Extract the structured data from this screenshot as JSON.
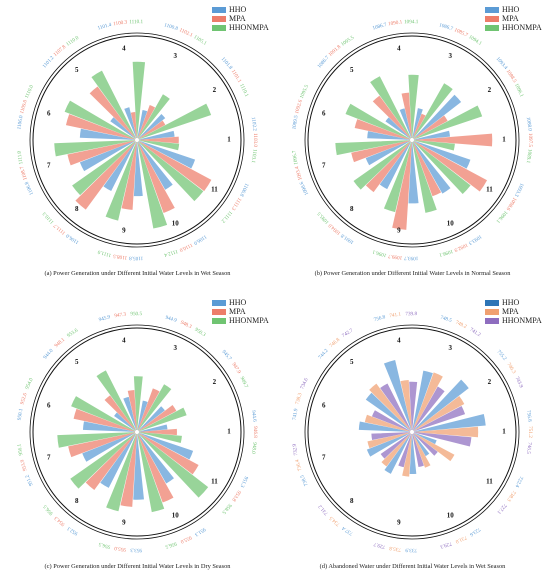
{
  "chart_data": [
    {
      "type": "radial-bar",
      "caption": "(a) Power Generation under Different Initial Water Levels in Wet Season",
      "legend_position": "top-right",
      "categories": [
        "1",
        "2",
        "3",
        "4",
        "5",
        "6",
        "7",
        "8",
        "9",
        "10",
        "11"
      ],
      "series": [
        {
          "name": "HHO",
          "color": "#5b9bd5",
          "values": [
            1102.2,
            1101.8,
            1100.8,
            1101.4,
            1101.2,
            1106.0,
            1106.8,
            1106.0,
            1105.8,
            1106.0,
            1106.8
          ]
        },
        {
          "name": "MPA",
          "color": "#ed7d6a",
          "values": [
            1103.0,
            1101.1,
            1102.1,
            1100.3,
            1107.8,
            1109.0,
            1108.7,
            1111.7,
            1108.5,
            1110.0,
            1111.3
          ]
        },
        {
          "name": "HHONMPA",
          "color": "#70c472",
          "values": [
            1103.1,
            1110.1,
            1105.1,
            1110.1,
            1110.0,
            1110.0,
            1111.0,
            1110.3,
            1111.0,
            1112.4,
            1111.2
          ]
        }
      ],
      "label_text": [
        [
          "1102.2",
          "1103.0",
          "1103.1"
        ],
        [
          "1101.8",
          "1101.1",
          "1110.1"
        ],
        [
          "1100.8",
          "1102.1",
          "1105.1"
        ],
        [
          "1101.4",
          "1100.3",
          "1110.1"
        ],
        [
          "1101.2",
          "1107.8",
          "1110.0"
        ],
        [
          "1106.0",
          "1109.0",
          "1110.0"
        ],
        [
          "1106.8",
          "1108.7",
          "1111.0"
        ],
        [
          "1106.0",
          "1111.7",
          "1110.3"
        ],
        [
          "1105.8",
          "1108.5",
          "1111.0"
        ],
        [
          "1106.0",
          "1110.0",
          "1112.4"
        ],
        [
          "1106.8",
          "1111.3",
          "1111.2"
        ]
      ]
    },
    {
      "type": "radial-bar",
      "caption": "(b) Power Generation under Different Initial Water Levels in Normal Season",
      "legend_position": "top-right",
      "categories": [
        "1",
        "2",
        "3",
        "4",
        "5",
        "6",
        "7",
        "8",
        "9",
        "10",
        "11"
      ],
      "series": [
        {
          "name": "HHO",
          "color": "#5b9bd5",
          "values": [
            1088.0,
            1093.4,
            1086.7,
            1086.7,
            1086.7,
            1089.5,
            1090.6,
            1091.8,
            1093.7,
            1093.3,
            1093.3
          ]
        },
        {
          "name": "MPA",
          "color": "#ed7d6a",
          "values": [
            1097.5,
            1088.5,
            1085.7,
            1090.1,
            1091.8,
            1092.6,
            1093.4,
            1094.0,
            1099.7,
            1092.9,
            1098.6
          ]
        },
        {
          "name": "HHONMPA",
          "color": "#70c472",
          "values": [
            1089.1,
            1096.1,
            1094.1,
            1094.1,
            1095.5,
            1095.5,
            1096.7,
            1095.5,
            1096.1,
            1096.1,
            1096.1
          ]
        }
      ],
      "label_text": [
        [
          "1088.0",
          "1097.5",
          "1089.1"
        ],
        [
          "1093.4",
          "1088.5",
          "1096.1"
        ],
        [
          "1086.7",
          "1085.7",
          "1094.1"
        ],
        [
          "1086.7",
          "1090.1",
          "1094.1"
        ],
        [
          "1086.7",
          "1091.8",
          "1095.5"
        ],
        [
          "1089.5",
          "1092.6",
          "1095.5"
        ],
        [
          "1090.6",
          "1093.4",
          "1096.7"
        ],
        [
          "1091.8",
          "1094.0",
          "1095.5"
        ],
        [
          "1093.7",
          "1099.7",
          "1096.1"
        ],
        [
          "1093.3",
          "1092.9",
          "1096.1"
        ],
        [
          "1093.3",
          "1098.6",
          "1096.1"
        ]
      ]
    },
    {
      "type": "radial-bar",
      "caption": "(c) Power Generation under Different Initial Water Levels in Dry Season",
      "legend_position": "top-right",
      "categories": [
        "1",
        "2",
        "3",
        "4",
        "5",
        "6",
        "7",
        "8",
        "9",
        "10",
        "11"
      ],
      "series": [
        {
          "name": "HHO",
          "color": "#5b9bd5",
          "values": [
            944.6,
            945.7,
            944.9,
            945.9,
            944.0,
            950.1,
            951.2,
            952.1,
            953.3,
            951.3,
            951.3
          ]
        },
        {
          "name": "MPA",
          "color": "#ed7d6a",
          "values": [
            946.8,
            947.9,
            948.3,
            947.3,
            948.1,
            952.6,
            953.9,
            954.3,
            955.0,
            955.0,
            953.8
          ]
        },
        {
          "name": "HHONMPA",
          "color": "#70c472",
          "values": [
            948.0,
            949.7,
            950.3,
            950.5,
            953.6,
            954.0,
            956.1,
            956.5,
            956.5,
            956.5,
            958.5
          ]
        }
      ],
      "label_text": [
        [
          "944.6",
          "946.8",
          "948.0"
        ],
        [
          "945.7",
          "947.9",
          "949.7"
        ],
        [
          "944.9",
          "948.3",
          "950.3"
        ],
        [
          "945.9",
          "947.3",
          "950.5"
        ],
        [
          "944.0",
          "948.1",
          "953.6"
        ],
        [
          "950.1",
          "952.6",
          "954.0"
        ],
        [
          "951.2",
          "953.9",
          "956.1"
        ],
        [
          "952.1",
          "954.3",
          "956.5"
        ],
        [
          "953.3",
          "955.0",
          "956.5"
        ],
        [
          "951.3",
          "955.0",
          "956.5"
        ],
        [
          "951.3",
          "953.8",
          "958.5"
        ]
      ]
    },
    {
      "type": "radial-bar",
      "caption": "(d) Abandoned Water under Different Initial Water Levels in Wet Season",
      "legend_position": "top-right",
      "categories": [
        "1",
        "2",
        "3",
        "4",
        "5",
        "6",
        "7",
        "8",
        "9",
        "10",
        "11"
      ],
      "series": [
        {
          "name": "HHO",
          "color": "#5b9bd5",
          "values": [
            756.8,
            755.2,
            748.5,
            756.8,
            744.2,
            741.9,
            738.5,
            737.4,
            733.9,
            723.6,
            722.4
          ]
        },
        {
          "name": "MPA",
          "color": "#f0a070",
          "values": [
            751.2,
            746.3,
            749.2,
            741.1,
            746.8,
            738.3,
            736.4,
            734.5,
            735.8,
            731.0,
            738.3
          ]
        },
        {
          "name": "HHONMPA",
          "color": "#8e6dbf",
          "values": [
            746.5,
            743.9,
            741.2,
            739.8,
            742.7,
            734.6,
            732.9,
            731.2,
            729.7,
            729.3,
            727.1
          ]
        }
      ],
      "label_text": [
        [
          "756.8",
          "751.2",
          "746.5"
        ],
        [
          "755.2",
          "746.3",
          "743.9"
        ],
        [
          "748.5",
          "749.2",
          "741.2"
        ],
        [
          "756.8",
          "741.1",
          "739.8"
        ],
        [
          "744.2",
          "746.8",
          "742.7"
        ],
        [
          "741.9",
          "738.3",
          "734.6"
        ],
        [
          "738.5",
          "736.4",
          "732.9"
        ],
        [
          "737.4",
          "734.5",
          "731.2"
        ],
        [
          "733.9",
          "735.8",
          "729.7"
        ],
        [
          "723.6",
          "731.0",
          "729.3"
        ],
        [
          "722.4",
          "738.3",
          "727.1"
        ]
      ]
    }
  ]
}
